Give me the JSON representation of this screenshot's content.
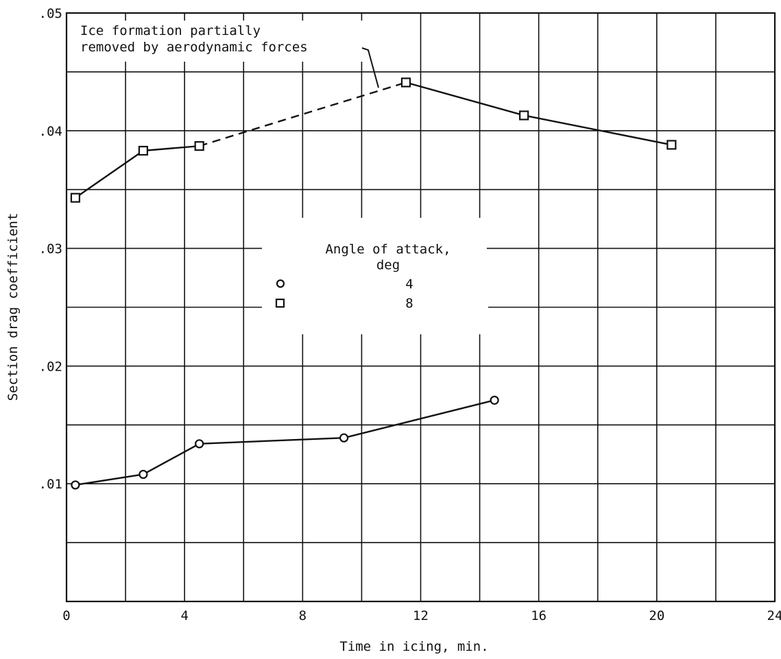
{
  "chart_data": {
    "type": "line",
    "xlabel": "Time in icing, min.",
    "ylabel": "Section drag coefficient",
    "xlim": [
      0,
      24
    ],
    "ylim": [
      0,
      0.05
    ],
    "grid": true,
    "x_ticks": [
      "0",
      "4",
      "8",
      "12",
      "16",
      "20",
      "24"
    ],
    "y_ticks": [
      ".01",
      ".02",
      ".03",
      ".04",
      ".05"
    ],
    "legend": {
      "title_line1": "Angle of attack,",
      "title_line2": "deg",
      "placement": "center",
      "entries": [
        {
          "marker": "circle",
          "label": "4"
        },
        {
          "marker": "square",
          "label": "8"
        }
      ]
    },
    "series": [
      {
        "name": "4",
        "marker": "circle",
        "points": [
          [
            0.3,
            0.0099
          ],
          [
            2.6,
            0.0108
          ],
          [
            4.5,
            0.0134
          ],
          [
            9.4,
            0.0139
          ],
          [
            14.5,
            0.0171
          ]
        ]
      },
      {
        "name": "8",
        "marker": "square",
        "points": [
          [
            0.3,
            0.0343
          ],
          [
            2.6,
            0.0383
          ],
          [
            4.5,
            0.0387
          ],
          [
            11.5,
            0.0441
          ],
          [
            15.5,
            0.0413
          ],
          [
            20.5,
            0.0388
          ]
        ],
        "dashed_segments": [
          [
            2,
            3
          ]
        ]
      }
    ],
    "annotation": {
      "line1": "Ice formation partially",
      "line2": "removed by aerodynamic forces"
    }
  }
}
